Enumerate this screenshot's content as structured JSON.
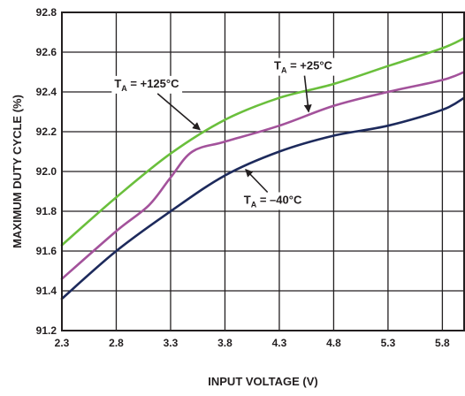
{
  "chart_data": {
    "type": "line",
    "xlabel": "INPUT VOLTAGE (V)",
    "ylabel": "MAXIMUM DUTY CYCLE (%)",
    "xlim": [
      2.3,
      6.0
    ],
    "ylim": [
      91.2,
      92.8
    ],
    "x_ticks": [
      2.3,
      2.8,
      3.3,
      3.8,
      4.3,
      4.8,
      5.3,
      5.8
    ],
    "x_tick_labels": [
      "2.3",
      "2.8",
      "3.3",
      "3.8",
      "4.3",
      "4.8",
      "5.3",
      "5.8"
    ],
    "y_ticks": [
      91.2,
      91.4,
      91.6,
      91.8,
      92.0,
      92.2,
      92.4,
      92.6,
      92.8
    ],
    "y_tick_labels": [
      "91.2",
      "91.4",
      "91.6",
      "91.8",
      "92.0",
      "92.2",
      "92.4",
      "92.6",
      "92.8"
    ],
    "grid": true,
    "series": [
      {
        "name": "TA = +125°C",
        "label_main": "T",
        "label_sub": "A",
        "label_rest": " = +125°C",
        "color": "#6abf3c",
        "x": [
          2.3,
          2.8,
          3.3,
          3.8,
          4.3,
          4.8,
          5.3,
          5.8,
          6.0
        ],
        "y": [
          91.63,
          91.87,
          92.09,
          92.26,
          92.37,
          92.44,
          92.53,
          92.62,
          92.67
        ]
      },
      {
        "name": "TA = +25°C",
        "label_main": "T",
        "label_sub": "A",
        "label_rest": " = +25°C",
        "color": "#a3529b",
        "x": [
          2.3,
          2.8,
          3.1,
          3.3,
          3.5,
          3.8,
          4.3,
          4.8,
          5.3,
          5.8,
          6.0
        ],
        "y": [
          91.46,
          91.7,
          91.83,
          91.97,
          92.1,
          92.15,
          92.23,
          92.33,
          92.4,
          92.46,
          92.5
        ]
      },
      {
        "name": "TA = -40°C",
        "label_main": "T",
        "label_sub": "A",
        "label_rest": " = –40°C",
        "color": "#1d2a5c",
        "x": [
          2.3,
          2.8,
          3.3,
          3.8,
          4.3,
          4.8,
          5.3,
          5.8,
          6.0
        ],
        "y": [
          91.36,
          91.6,
          91.8,
          91.98,
          92.1,
          92.18,
          92.23,
          92.31,
          92.37
        ]
      }
    ],
    "annotations": [
      {
        "series": 0,
        "label_x": 3.08,
        "label_y": 92.445,
        "arrow_to_x": 3.57,
        "arrow_to_y": 92.21
      },
      {
        "series": 1,
        "label_x": 4.52,
        "label_y": 92.535,
        "arrow_to_x": 4.57,
        "arrow_to_y": 92.3
      },
      {
        "series": 2,
        "label_x": 4.24,
        "label_y": 91.86,
        "arrow_to_x": 3.99,
        "arrow_to_y": 92.01
      }
    ]
  }
}
